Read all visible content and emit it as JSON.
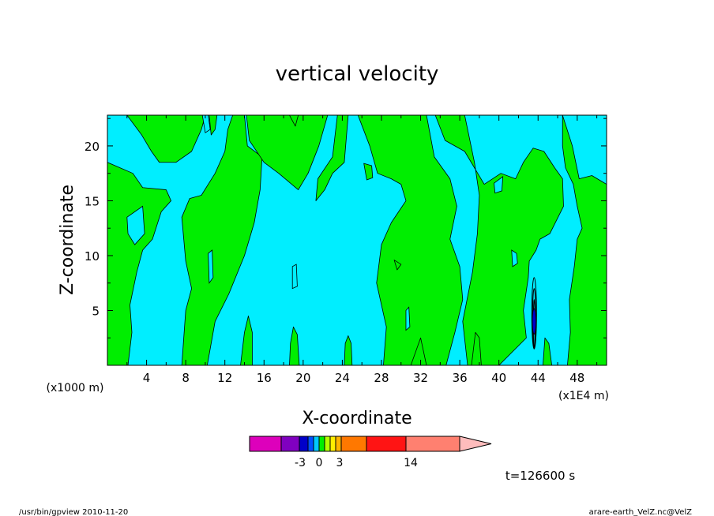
{
  "chart_data": {
    "type": "heatmap",
    "title": "vertical velocity",
    "xlabel": "X-coordinate",
    "ylabel": "Z-coordinate",
    "x_unit_left": "(x1000 m)",
    "x_unit_right": "(x1E4 m)",
    "x_ticks": [
      "4",
      "8",
      "12",
      "16",
      "20",
      "24",
      "28",
      "32",
      "36",
      "40",
      "44",
      "48"
    ],
    "y_ticks": [
      "5",
      "10",
      "15",
      "20"
    ],
    "xlim": [
      0,
      51
    ],
    "ylim": [
      0,
      22.8
    ],
    "time_label": "t=126600 s",
    "colorbar": {
      "tick_labels": [
        "-3",
        "0",
        "3",
        "14"
      ],
      "colors": [
        "#dd00bb",
        "#8000c0",
        "#0000c8",
        "#0050ff",
        "#00c8ff",
        "#00ee00",
        "#b4ff00",
        "#ffee00",
        "#ffb400",
        "#ff7800",
        "#ff1414",
        "#ff8070",
        "#ffbcbc"
      ]
    },
    "colors": {
      "negative": "#00eeff",
      "positive": "#00ee00",
      "strong_negative": "#0000c8"
    }
  },
  "footer": {
    "left": "/usr/bin/gpview   2010-11-20",
    "right": "arare-earth_VelZ.nc@VelZ"
  }
}
